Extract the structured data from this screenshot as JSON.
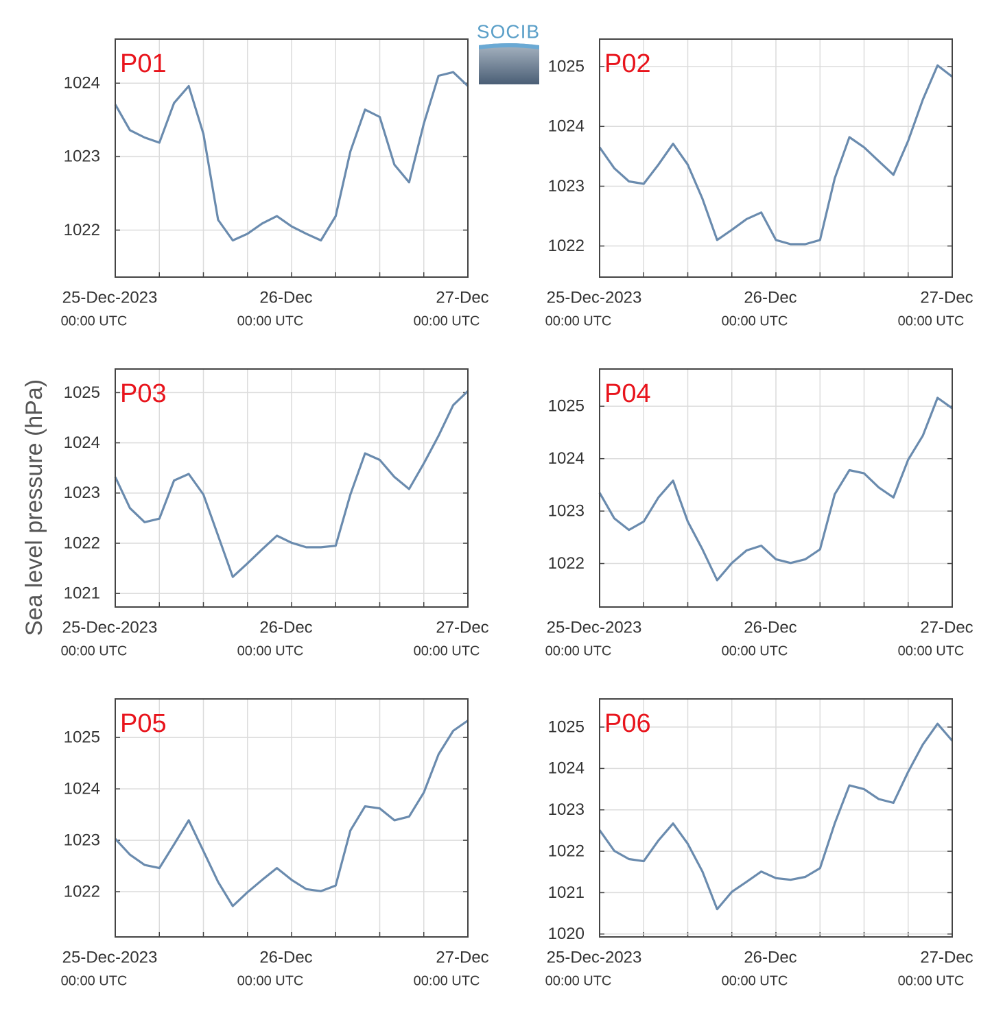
{
  "y_label": "Sea level pressure (hPa)",
  "logo": "SOCIB",
  "chart_data": [
    {
      "type": "line",
      "title": "P01",
      "color": "#6a8bae",
      "x": [
        "2023-12-25T00:00Z",
        "2023-12-25T02:00Z",
        "2023-12-25T04:00Z",
        "2023-12-25T06:00Z",
        "2023-12-25T08:00Z",
        "2023-12-25T10:00Z",
        "2023-12-25T12:00Z",
        "2023-12-25T14:00Z",
        "2023-12-25T16:00Z",
        "2023-12-25T18:00Z",
        "2023-12-25T20:00Z",
        "2023-12-25T22:00Z",
        "2023-12-26T00:00Z",
        "2023-12-26T02:00Z",
        "2023-12-26T04:00Z",
        "2023-12-26T06:00Z",
        "2023-12-26T08:00Z",
        "2023-12-26T10:00Z",
        "2023-12-26T12:00Z",
        "2023-12-26T14:00Z",
        "2023-12-26T16:00Z",
        "2023-12-26T18:00Z",
        "2023-12-26T20:00Z",
        "2023-12-26T22:00Z",
        "2023-12-27T00:00Z"
      ],
      "values": [
        1023.71,
        1023.36,
        1023.26,
        1023.19,
        1023.73,
        1023.96,
        1023.31,
        1022.14,
        1021.86,
        1021.95,
        1022.09,
        1022.19,
        1022.05,
        1021.95,
        1021.86,
        1022.19,
        1023.07,
        1023.64,
        1023.54,
        1022.89,
        1022.65,
        1023.45,
        1024.1,
        1024.15,
        1023.96
      ],
      "ylim": [
        1021.36,
        1024.6
      ],
      "yticks": [
        1022,
        1023,
        1024
      ],
      "grid": true,
      "xlim": [
        "2023-12-25T00:00Z",
        "2023-12-27T00:00Z"
      ],
      "xticks": [
        {
          "value": "2023-12-25T00:00Z",
          "label": [
            "25-Dec-2023",
            "00:00 UTC"
          ]
        },
        {
          "value": "2023-12-25T06:00Z"
        },
        {
          "value": "2023-12-25T12:00Z"
        },
        {
          "value": "2023-12-25T18:00Z"
        },
        {
          "value": "2023-12-26T00:00Z",
          "label": [
            "26-Dec",
            "00:00 UTC"
          ]
        },
        {
          "value": "2023-12-26T06:00Z"
        },
        {
          "value": "2023-12-26T12:00Z"
        },
        {
          "value": "2023-12-26T18:00Z"
        },
        {
          "value": "2023-12-27T00:00Z",
          "label": [
            "27-Dec",
            "00:00 UTC"
          ]
        }
      ]
    },
    {
      "type": "line",
      "title": "P02",
      "color": "#6a8bae",
      "x": [
        "2023-12-25T00:00Z",
        "2023-12-25T02:00Z",
        "2023-12-25T04:00Z",
        "2023-12-25T06:00Z",
        "2023-12-25T08:00Z",
        "2023-12-25T10:00Z",
        "2023-12-25T12:00Z",
        "2023-12-25T14:00Z",
        "2023-12-25T16:00Z",
        "2023-12-25T18:00Z",
        "2023-12-25T20:00Z",
        "2023-12-25T22:00Z",
        "2023-12-26T00:00Z",
        "2023-12-26T02:00Z",
        "2023-12-26T04:00Z",
        "2023-12-26T06:00Z",
        "2023-12-26T08:00Z",
        "2023-12-26T10:00Z",
        "2023-12-26T12:00Z",
        "2023-12-26T14:00Z",
        "2023-12-26T16:00Z",
        "2023-12-26T18:00Z",
        "2023-12-26T20:00Z",
        "2023-12-26T22:00Z",
        "2023-12-27T00:00Z"
      ],
      "values": [
        1023.65,
        1023.3,
        1023.08,
        1023.04,
        1023.36,
        1023.71,
        1023.36,
        1022.79,
        1022.1,
        1022.27,
        1022.45,
        1022.56,
        1022.1,
        1022.03,
        1022.03,
        1022.1,
        1023.13,
        1023.82,
        1023.65,
        1023.42,
        1023.19,
        1023.76,
        1024.45,
        1025.02,
        1024.83
      ],
      "ylim": [
        1021.48,
        1025.46
      ],
      "yticks": [
        1022,
        1023,
        1024,
        1025
      ],
      "grid": true,
      "xlim": [
        "2023-12-25T00:00Z",
        "2023-12-27T00:00Z"
      ],
      "xticks": [
        {
          "value": "2023-12-25T00:00Z",
          "label": [
            "25-Dec-2023",
            "00:00 UTC"
          ]
        },
        {
          "value": "2023-12-25T06:00Z"
        },
        {
          "value": "2023-12-25T12:00Z"
        },
        {
          "value": "2023-12-25T18:00Z"
        },
        {
          "value": "2023-12-26T00:00Z",
          "label": [
            "26-Dec",
            "00:00 UTC"
          ]
        },
        {
          "value": "2023-12-26T06:00Z"
        },
        {
          "value": "2023-12-26T12:00Z"
        },
        {
          "value": "2023-12-26T18:00Z"
        },
        {
          "value": "2023-12-27T00:00Z",
          "label": [
            "27-Dec",
            "00:00 UTC"
          ]
        }
      ]
    },
    {
      "type": "line",
      "title": "P03",
      "color": "#6a8bae",
      "x": [
        "2023-12-25T00:00Z",
        "2023-12-25T02:00Z",
        "2023-12-25T04:00Z",
        "2023-12-25T06:00Z",
        "2023-12-25T08:00Z",
        "2023-12-25T10:00Z",
        "2023-12-25T12:00Z",
        "2023-12-25T14:00Z",
        "2023-12-25T16:00Z",
        "2023-12-25T18:00Z",
        "2023-12-25T20:00Z",
        "2023-12-25T22:00Z",
        "2023-12-26T00:00Z",
        "2023-12-26T02:00Z",
        "2023-12-26T04:00Z",
        "2023-12-26T06:00Z",
        "2023-12-26T08:00Z",
        "2023-12-26T10:00Z",
        "2023-12-26T12:00Z",
        "2023-12-26T14:00Z",
        "2023-12-26T16:00Z",
        "2023-12-26T18:00Z",
        "2023-12-26T20:00Z",
        "2023-12-26T22:00Z",
        "2023-12-27T00:00Z"
      ],
      "values": [
        1023.32,
        1022.7,
        1022.42,
        1022.49,
        1023.25,
        1023.38,
        1022.97,
        1022.15,
        1021.33,
        1021.6,
        1021.88,
        1022.15,
        1022.01,
        1021.92,
        1021.92,
        1021.95,
        1022.97,
        1023.79,
        1023.66,
        1023.32,
        1023.08,
        1023.59,
        1024.14,
        1024.75,
        1025.03
      ],
      "ylim": [
        1020.73,
        1025.47
      ],
      "yticks": [
        1021,
        1022,
        1023,
        1024,
        1025
      ],
      "grid": true,
      "xlim": [
        "2023-12-25T00:00Z",
        "2023-12-27T00:00Z"
      ],
      "xticks": [
        {
          "value": "2023-12-25T00:00Z",
          "label": [
            "25-Dec-2023",
            "00:00 UTC"
          ]
        },
        {
          "value": "2023-12-25T06:00Z"
        },
        {
          "value": "2023-12-25T12:00Z"
        },
        {
          "value": "2023-12-25T18:00Z"
        },
        {
          "value": "2023-12-26T00:00Z",
          "label": [
            "26-Dec",
            "00:00 UTC"
          ]
        },
        {
          "value": "2023-12-26T06:00Z"
        },
        {
          "value": "2023-12-26T12:00Z"
        },
        {
          "value": "2023-12-26T18:00Z"
        },
        {
          "value": "2023-12-27T00:00Z",
          "label": [
            "27-Dec",
            "00:00 UTC"
          ]
        }
      ]
    },
    {
      "type": "line",
      "title": "P04",
      "color": "#6a8bae",
      "x": [
        "2023-12-25T00:00Z",
        "2023-12-25T02:00Z",
        "2023-12-25T04:00Z",
        "2023-12-25T06:00Z",
        "2023-12-25T08:00Z",
        "2023-12-25T10:00Z",
        "2023-12-25T12:00Z",
        "2023-12-25T14:00Z",
        "2023-12-25T16:00Z",
        "2023-12-25T18:00Z",
        "2023-12-25T20:00Z",
        "2023-12-25T22:00Z",
        "2023-12-26T00:00Z",
        "2023-12-26T02:00Z",
        "2023-12-26T04:00Z",
        "2023-12-26T06:00Z",
        "2023-12-26T08:00Z",
        "2023-12-26T10:00Z",
        "2023-12-26T12:00Z",
        "2023-12-26T14:00Z",
        "2023-12-26T16:00Z",
        "2023-12-26T18:00Z",
        "2023-12-26T20:00Z",
        "2023-12-26T22:00Z",
        "2023-12-27T00:00Z"
      ],
      "values": [
        1023.35,
        1022.86,
        1022.64,
        1022.8,
        1023.26,
        1023.58,
        1022.8,
        1022.27,
        1021.68,
        1022.01,
        1022.25,
        1022.34,
        1022.08,
        1022.01,
        1022.08,
        1022.27,
        1023.32,
        1023.78,
        1023.72,
        1023.45,
        1023.26,
        1023.98,
        1024.44,
        1025.16,
        1024.96
      ],
      "ylim": [
        1021.17,
        1025.71
      ],
      "yticks": [
        1022,
        1023,
        1024,
        1025
      ],
      "grid": true,
      "xlim": [
        "2023-12-25T00:00Z",
        "2023-12-27T00:00Z"
      ],
      "xticks": [
        {
          "value": "2023-12-25T00:00Z",
          "label": [
            "25-Dec-2023",
            "00:00 UTC"
          ]
        },
        {
          "value": "2023-12-25T06:00Z"
        },
        {
          "value": "2023-12-25T12:00Z"
        },
        {
          "value": "2023-12-25T18:00Z"
        },
        {
          "value": "2023-12-26T00:00Z",
          "label": [
            "26-Dec",
            "00:00 UTC"
          ]
        },
        {
          "value": "2023-12-26T06:00Z"
        },
        {
          "value": "2023-12-26T12:00Z"
        },
        {
          "value": "2023-12-26T18:00Z"
        },
        {
          "value": "2023-12-27T00:00Z",
          "label": [
            "27-Dec",
            "00:00 UTC"
          ]
        }
      ]
    },
    {
      "type": "line",
      "title": "P05",
      "color": "#6a8bae",
      "x": [
        "2023-12-25T00:00Z",
        "2023-12-25T02:00Z",
        "2023-12-25T04:00Z",
        "2023-12-25T06:00Z",
        "2023-12-25T08:00Z",
        "2023-12-25T10:00Z",
        "2023-12-25T12:00Z",
        "2023-12-25T14:00Z",
        "2023-12-25T16:00Z",
        "2023-12-25T18:00Z",
        "2023-12-25T20:00Z",
        "2023-12-25T22:00Z",
        "2023-12-26T00:00Z",
        "2023-12-26T02:00Z",
        "2023-12-26T04:00Z",
        "2023-12-26T06:00Z",
        "2023-12-26T08:00Z",
        "2023-12-26T10:00Z",
        "2023-12-26T12:00Z",
        "2023-12-26T14:00Z",
        "2023-12-26T16:00Z",
        "2023-12-26T18:00Z",
        "2023-12-26T20:00Z",
        "2023-12-26T22:00Z",
        "2023-12-27T00:00Z"
      ],
      "values": [
        1023.03,
        1022.72,
        1022.52,
        1022.46,
        1022.92,
        1023.39,
        1022.79,
        1022.19,
        1021.72,
        1021.99,
        1022.23,
        1022.46,
        1022.23,
        1022.05,
        1022.01,
        1022.12,
        1023.19,
        1023.66,
        1023.62,
        1023.39,
        1023.46,
        1023.93,
        1024.67,
        1025.13,
        1025.33
      ],
      "ylim": [
        1021.12,
        1025.75
      ],
      "yticks": [
        1022,
        1023,
        1024,
        1025
      ],
      "grid": true,
      "xlim": [
        "2023-12-25T00:00Z",
        "2023-12-27T00:00Z"
      ],
      "xticks": [
        {
          "value": "2023-12-25T00:00Z",
          "label": [
            "25-Dec-2023",
            "00:00 UTC"
          ]
        },
        {
          "value": "2023-12-25T06:00Z"
        },
        {
          "value": "2023-12-25T12:00Z"
        },
        {
          "value": "2023-12-25T18:00Z"
        },
        {
          "value": "2023-12-26T00:00Z",
          "label": [
            "26-Dec",
            "00:00 UTC"
          ]
        },
        {
          "value": "2023-12-26T06:00Z"
        },
        {
          "value": "2023-12-26T12:00Z"
        },
        {
          "value": "2023-12-26T18:00Z"
        },
        {
          "value": "2023-12-27T00:00Z",
          "label": [
            "27-Dec",
            "00:00 UTC"
          ]
        }
      ]
    },
    {
      "type": "line",
      "title": "P06",
      "color": "#6a8bae",
      "x": [
        "2023-12-25T00:00Z",
        "2023-12-25T02:00Z",
        "2023-12-25T04:00Z",
        "2023-12-25T06:00Z",
        "2023-12-25T08:00Z",
        "2023-12-25T10:00Z",
        "2023-12-25T12:00Z",
        "2023-12-25T14:00Z",
        "2023-12-25T16:00Z",
        "2023-12-25T18:00Z",
        "2023-12-25T20:00Z",
        "2023-12-25T22:00Z",
        "2023-12-26T00:00Z",
        "2023-12-26T02:00Z",
        "2023-12-26T04:00Z",
        "2023-12-26T06:00Z",
        "2023-12-26T08:00Z",
        "2023-12-26T10:00Z",
        "2023-12-26T12:00Z",
        "2023-12-26T14:00Z",
        "2023-12-26T16:00Z",
        "2023-12-26T18:00Z",
        "2023-12-26T20:00Z",
        "2023-12-26T22:00Z",
        "2023-12-27T00:00Z"
      ],
      "values": [
        1022.51,
        1022.01,
        1021.81,
        1021.76,
        1022.26,
        1022.67,
        1022.18,
        1021.51,
        1020.6,
        1021.02,
        1021.26,
        1021.51,
        1021.35,
        1021.31,
        1021.38,
        1021.59,
        1022.67,
        1023.59,
        1023.5,
        1023.26,
        1023.17,
        1023.92,
        1024.58,
        1025.08,
        1024.67
      ],
      "ylim": [
        1019.93,
        1025.68
      ],
      "yticks": [
        1020,
        1021,
        1022,
        1023,
        1024,
        1025
      ],
      "grid": true,
      "xlim": [
        "2023-12-25T00:00Z",
        "2023-12-27T00:00Z"
      ],
      "xticks": [
        {
          "value": "2023-12-25T00:00Z",
          "label": [
            "25-Dec-2023",
            "00:00 UTC"
          ]
        },
        {
          "value": "2023-12-25T06:00Z"
        },
        {
          "value": "2023-12-25T12:00Z"
        },
        {
          "value": "2023-12-25T18:00Z"
        },
        {
          "value": "2023-12-26T00:00Z",
          "label": [
            "26-Dec",
            "00:00 UTC"
          ]
        },
        {
          "value": "2023-12-26T06:00Z"
        },
        {
          "value": "2023-12-26T12:00Z"
        },
        {
          "value": "2023-12-26T18:00Z"
        },
        {
          "value": "2023-12-27T00:00Z",
          "label": [
            "27-Dec",
            "00:00 UTC"
          ]
        }
      ]
    }
  ]
}
